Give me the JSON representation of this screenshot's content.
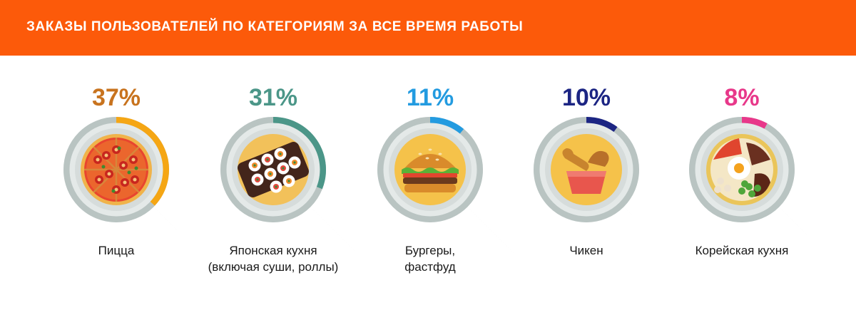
{
  "header": {
    "title": "ЗАКАЗЫ ПОЛЬЗОВАТЕЛЕЙ ПО КАТЕГОРИЯМ ЗА ВСЕ ВРЕМЯ РАБОТЫ",
    "background": "#fc5a0a"
  },
  "chart_data": {
    "type": "pie",
    "title": "ЗАКАЗЫ ПОЛЬЗОВАТЕЛЕЙ ПО КАТЕГОРИЯМ ЗА ВСЕ ВРЕМЯ РАБОТЫ",
    "unit": "%",
    "track_color": "#b9c4c2",
    "items": [
      {
        "label_lines": [
          "Пицца"
        ],
        "value": 37,
        "value_label": "37%",
        "color": "#f5a614",
        "label_color": "#c8731e",
        "icon": "pizza-icon"
      },
      {
        "label_lines": [
          "Японская кухня",
          "(включая суши, роллы)"
        ],
        "value": 31,
        "value_label": "31%",
        "color": "#4b9688",
        "label_color": "#4b9688",
        "icon": "sushi-icon"
      },
      {
        "label_lines": [
          "Бургеры,",
          "фастфуд"
        ],
        "value": 11,
        "value_label": "11%",
        "color": "#239be0",
        "label_color": "#239be0",
        "icon": "burger-icon"
      },
      {
        "label_lines": [
          "Чикен"
        ],
        "value": 10,
        "value_label": "10%",
        "color": "#1c2583",
        "label_color": "#1c2583",
        "icon": "chicken-icon"
      },
      {
        "label_lines": [
          "Корейская кухня"
        ],
        "value": 8,
        "value_label": "8%",
        "color": "#e8388a",
        "label_color": "#e8388a",
        "icon": "korean-bowl-icon"
      }
    ]
  }
}
